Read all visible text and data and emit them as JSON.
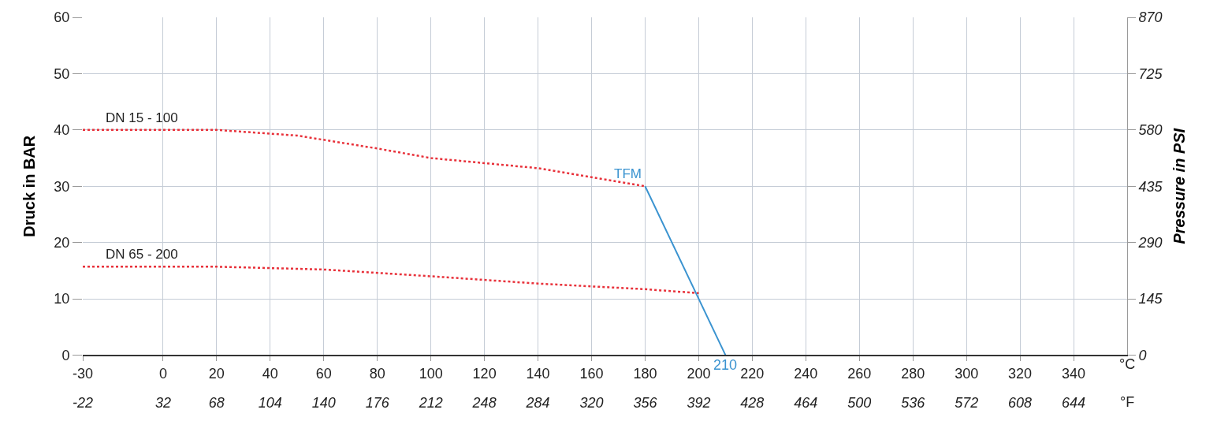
{
  "chart_data": {
    "type": "line",
    "xlabel": "°C",
    "x2label": "°F",
    "ylabel": "Druck in BAR",
    "y2label": "Pressure in PSI",
    "xlim": [
      -30,
      360
    ],
    "xticks": [
      -30,
      0,
      20,
      40,
      60,
      80,
      100,
      120,
      140,
      160,
      180,
      200,
      220,
      240,
      260,
      280,
      300,
      320,
      340
    ],
    "x2lim": [
      -22,
      680
    ],
    "x2ticks": [
      -22,
      32,
      68,
      104,
      140,
      176,
      212,
      248,
      284,
      320,
      356,
      392,
      428,
      464,
      500,
      536,
      572,
      608,
      644
    ],
    "ylim": [
      0,
      60
    ],
    "yticks": [
      0,
      10,
      20,
      30,
      40,
      50,
      60
    ],
    "y2lim": [
      0,
      870
    ],
    "y2ticks": [
      0,
      145,
      290,
      435,
      580,
      725,
      870
    ],
    "grid": true,
    "legend": false,
    "marker": "none",
    "series": [
      {
        "name": "DN 15 - 100",
        "color": "#e8313a",
        "line_style": "dotted",
        "x": [
          -30,
          20,
          50,
          80,
          100,
          140,
          180
        ],
        "values": [
          40,
          40,
          39,
          36.7,
          35,
          33.2,
          30
        ]
      },
      {
        "name": "DN 65 - 200",
        "color": "#e8313a",
        "line_style": "dotted",
        "x": [
          -30,
          20,
          60,
          100,
          140,
          180,
          200
        ],
        "values": [
          15.7,
          15.7,
          15.2,
          14,
          12.7,
          11.7,
          11
        ]
      },
      {
        "name": "TFM",
        "color": "#3a93d0",
        "line_style": "solid",
        "x": [
          180,
          210
        ],
        "values": [
          30,
          0
        ]
      }
    ],
    "annotations": [
      {
        "text": "210",
        "x": 210,
        "y": 0
      }
    ]
  }
}
